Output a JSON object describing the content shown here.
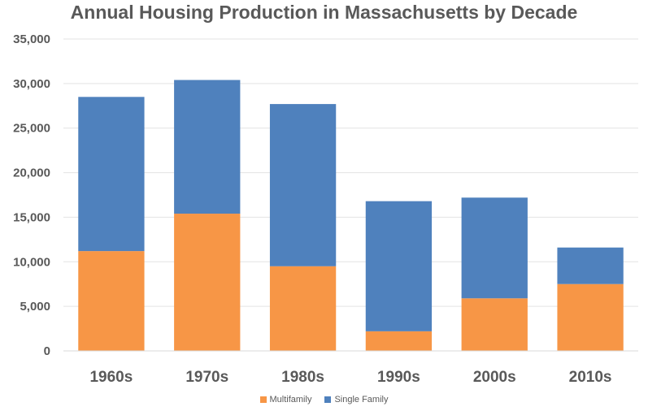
{
  "chart_data": {
    "type": "bar",
    "stacked": true,
    "title": "Annual Housing Production in Massachusetts by Decade",
    "categories": [
      "1960s",
      "1970s",
      "1980s",
      "1990s",
      "2000s",
      "2010s"
    ],
    "series": [
      {
        "name": "Multifamily",
        "color": "#F79646",
        "values": [
          11200,
          15400,
          9500,
          2200,
          5900,
          7500
        ]
      },
      {
        "name": "Single Family",
        "color": "#4F81BD",
        "values": [
          17300,
          15000,
          18200,
          14600,
          11300,
          4100
        ]
      }
    ],
    "ylim": [
      0,
      35000
    ],
    "yticks": [
      "0",
      "5,000",
      "10,000",
      "15,000",
      "20,000",
      "25,000",
      "30,000",
      "35,000"
    ],
    "grid": true,
    "legend_position": "bottom"
  }
}
